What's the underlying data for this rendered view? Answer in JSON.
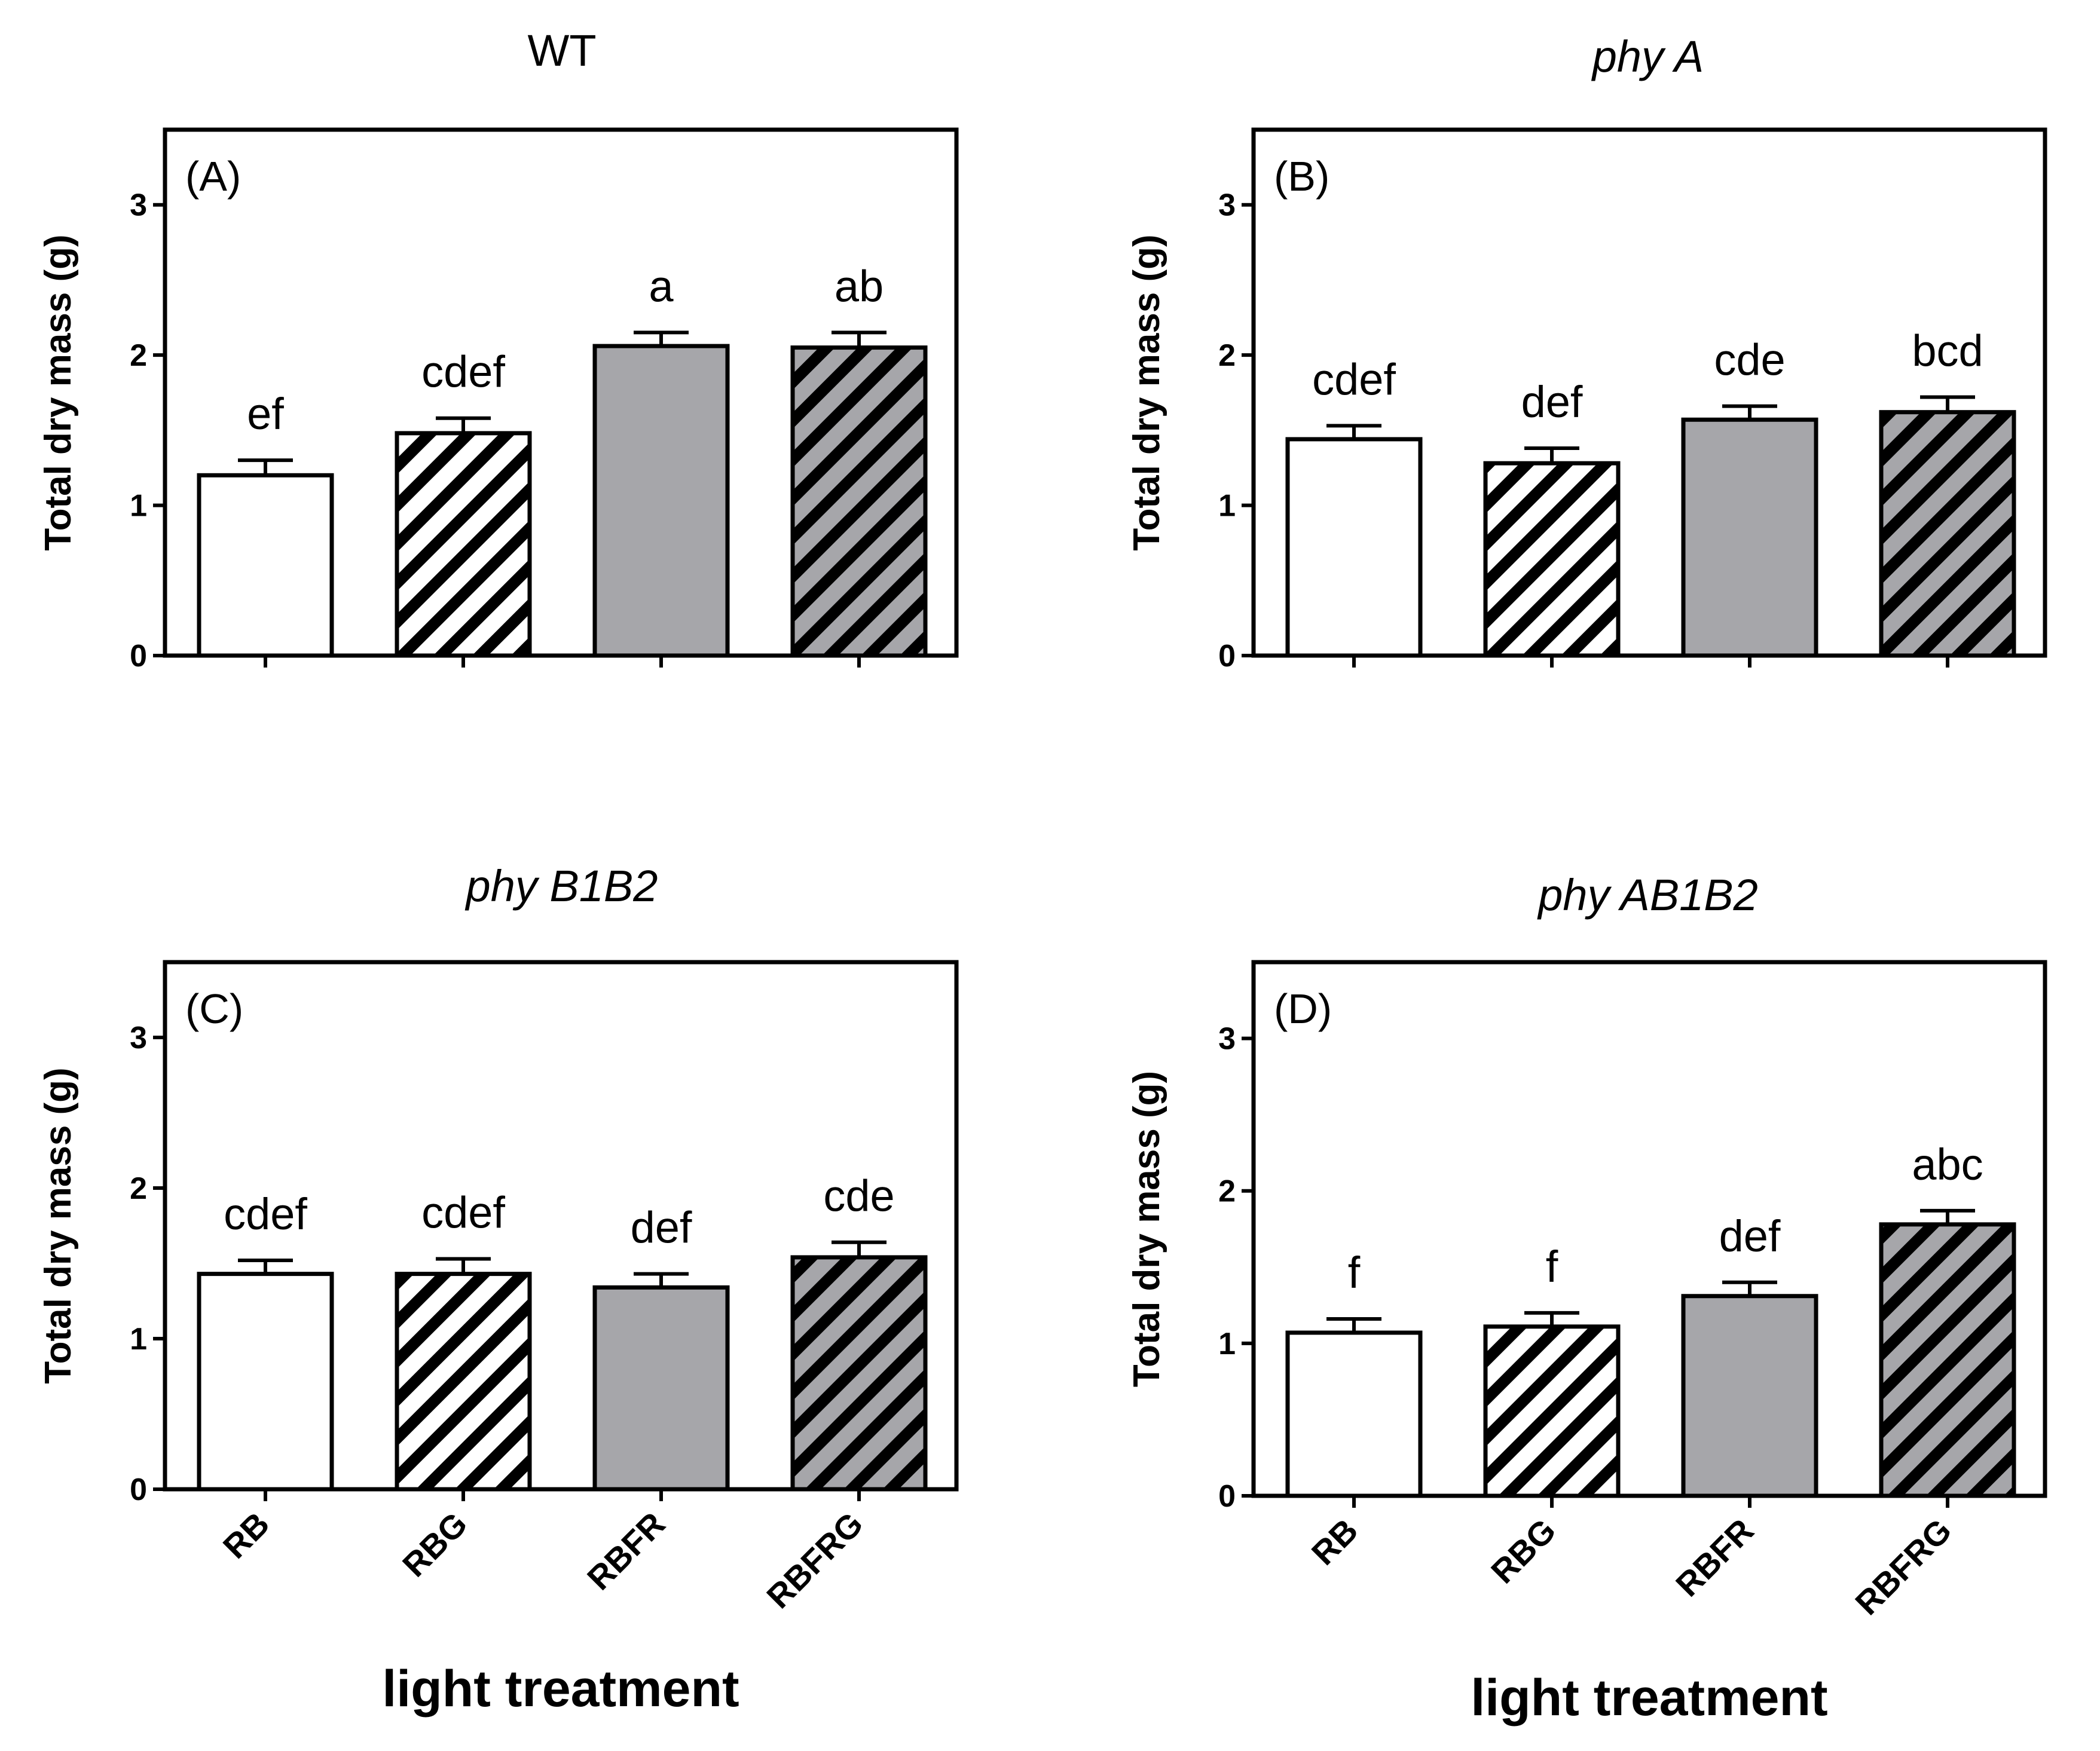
{
  "x_axis_label": "light treatment",
  "y_axis_label": "Total dry mass (g)",
  "categories": [
    "RB",
    "RBG",
    "RBFR",
    "RBFRG"
  ],
  "fill_styles": {
    "RB": {
      "fill": "#ffffff",
      "hatch": false
    },
    "RBG": {
      "fill": "#ffffff",
      "hatch": true
    },
    "RBFR": {
      "fill": "#a6a6aa",
      "hatch": false
    },
    "RBFRG": {
      "fill": "#a6a6aa",
      "hatch": true
    }
  },
  "chart_data": [
    {
      "type": "bar",
      "panel": "(A)",
      "title": "WT",
      "title_italic": false,
      "categories": [
        "RB",
        "RBG",
        "RBFR",
        "RBFRG"
      ],
      "values": [
        1.2,
        1.48,
        2.06,
        2.05
      ],
      "errors": [
        0.1,
        0.1,
        0.09,
        0.1
      ],
      "letters": [
        "ef",
        "cdef",
        "a",
        "ab"
      ],
      "ylabel": "Total dry mass (g)",
      "xlabel": "",
      "ylim": [
        0,
        3.5
      ],
      "yticks": [
        "0",
        "1",
        "2",
        "3"
      ]
    },
    {
      "type": "bar",
      "panel": "(B)",
      "title": "phy A",
      "title_italic": true,
      "categories": [
        "RB",
        "RBG",
        "RBFR",
        "RBFRG"
      ],
      "values": [
        1.44,
        1.28,
        1.57,
        1.62
      ],
      "errors": [
        0.09,
        0.1,
        0.09,
        0.1
      ],
      "letters": [
        "cdef",
        "def",
        "cde",
        "bcd"
      ],
      "ylabel": "Total dry mass (g)",
      "xlabel": "",
      "ylim": [
        0,
        3.5
      ],
      "yticks": [
        "0",
        "1",
        "2",
        "3"
      ]
    },
    {
      "type": "bar",
      "panel": "(C)",
      "title": "phy B1B2",
      "title_italic": true,
      "categories": [
        "RB",
        "RBG",
        "RBFR",
        "RBFRG"
      ],
      "values": [
        1.43,
        1.43,
        1.34,
        1.54
      ],
      "errors": [
        0.09,
        0.1,
        0.09,
        0.1
      ],
      "letters": [
        "cdef",
        "cdef",
        "def",
        "cde"
      ],
      "ylabel": "Total dry mass (g)",
      "xlabel": "light treatment",
      "ylim": [
        0,
        3.5
      ],
      "yticks": [
        "0",
        "1",
        "2",
        "3"
      ]
    },
    {
      "type": "bar",
      "panel": "(D)",
      "title": "phy AB1B2",
      "title_italic": true,
      "categories": [
        "RB",
        "RBG",
        "RBFR",
        "RBFRG"
      ],
      "values": [
        1.07,
        1.11,
        1.31,
        1.78
      ],
      "errors": [
        0.09,
        0.09,
        0.09,
        0.09
      ],
      "letters": [
        "f",
        "f",
        "def",
        "abc"
      ],
      "ylabel": "Total dry mass (g)",
      "xlabel": "light treatment",
      "ylim": [
        0,
        3.5
      ],
      "yticks": [
        "0",
        "1",
        "2",
        "3"
      ]
    }
  ]
}
